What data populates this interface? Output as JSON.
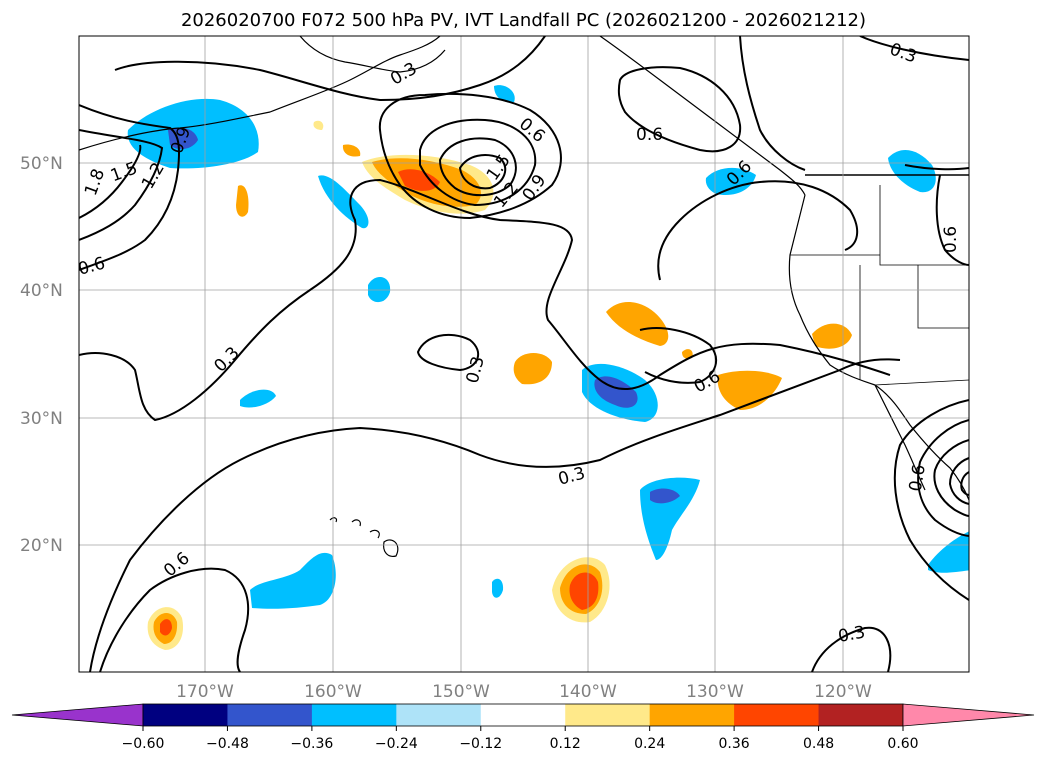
{
  "title": "2026020700 F072 500 hPa PV, IVT Landfall PC (2026021200 - 2026021212)",
  "lat_labels": [
    "50°N",
    "40°N",
    "30°N",
    "20°N"
  ],
  "lon_labels": [
    "170°W",
    "160°W",
    "150°W",
    "140°W",
    "130°W",
    "120°W"
  ],
  "colorbar": {
    "colors": [
      "#9933cc",
      "#000080",
      "#3355cc",
      "#00bfff",
      "#aee3f8",
      "#ffffff",
      "#ffe98a",
      "#ffa500",
      "#ff4500",
      "#b22222",
      "#ff88aa"
    ],
    "ticks": [
      "−0.60",
      "−0.48",
      "−0.36",
      "−0.24",
      "−0.12",
      "0.12",
      "0.24",
      "0.36",
      "0.48",
      "0.60"
    ]
  },
  "contour_labels": [
    "0.3",
    "0.3",
    "0.3",
    "0.3",
    "0.3",
    "0.3",
    "0.6",
    "0.6",
    "0.6",
    "0.6",
    "0.6",
    "0.6",
    "0.6",
    "0.9",
    "1.2",
    "1.5",
    "1.8",
    "1.2",
    "1.5",
    "0.9",
    "0.6"
  ],
  "colors": {
    "contour": "#000000",
    "grid": "#a0a0a0",
    "land": "#000000"
  }
}
